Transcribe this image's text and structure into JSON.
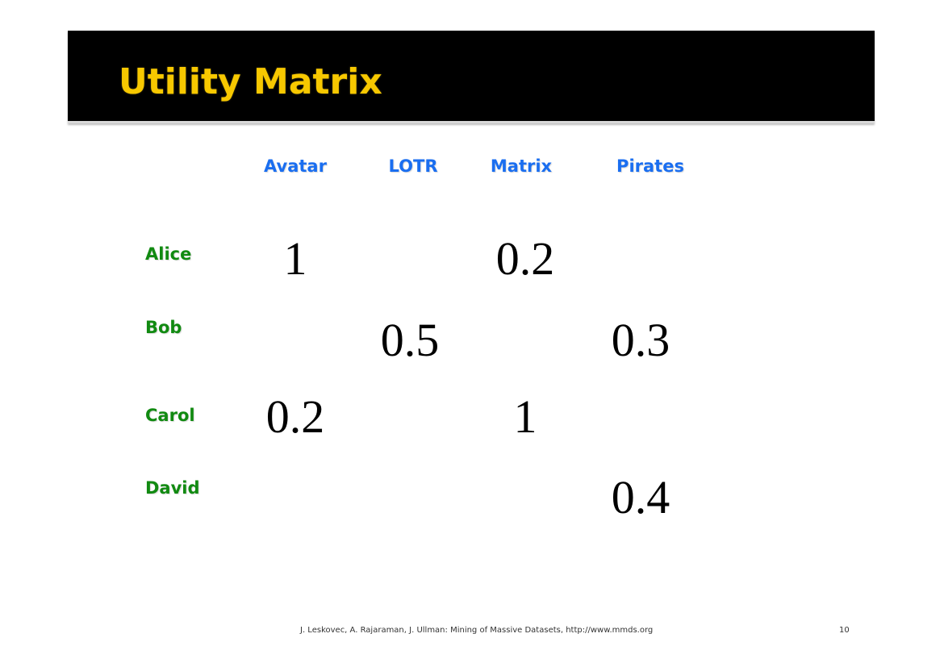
{
  "slide": {
    "title": "Utility Matrix",
    "colors": {
      "title_bar": "#000000",
      "title_text": "#f7c800",
      "column_header": "#1a6ef0",
      "row_header": "#118a11",
      "cell_text": "#000000"
    }
  },
  "matrix": {
    "columns": [
      "Avatar",
      "LOTR",
      "Matrix",
      "Pirates"
    ],
    "rows": [
      {
        "name": "Alice",
        "cells": [
          "1",
          "",
          "0.2",
          ""
        ]
      },
      {
        "name": "Bob",
        "cells": [
          "",
          "0.5",
          "",
          "0.3"
        ]
      },
      {
        "name": "Carol",
        "cells": [
          "0.2",
          "",
          "1",
          ""
        ]
      },
      {
        "name": "David",
        "cells": [
          "",
          "",
          "",
          "0.4"
        ]
      }
    ]
  },
  "footer": {
    "citation": "J. Leskovec, A. Rajaraman, J. Ullman: Mining of Massive Datasets, http://www.mmds.org",
    "page_number": "10"
  }
}
